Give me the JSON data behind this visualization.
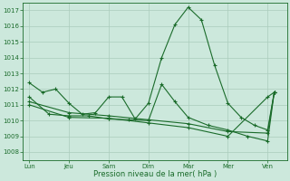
{
  "background_color": "#cce8dc",
  "grid_color": "#aaccbc",
  "line_color": "#1a6b2a",
  "title": "Pression niveau de la mer( hPa )",
  "ylim": [
    1007.5,
    1017.5
  ],
  "yticks": [
    1008,
    1009,
    1010,
    1011,
    1012,
    1013,
    1014,
    1015,
    1016,
    1017
  ],
  "x_labels": [
    "Lun",
    "Jeu",
    "Sam",
    "Dim",
    "Mar",
    "Mer",
    "Ven"
  ],
  "x_positions": [
    0,
    3,
    6,
    9,
    12,
    15,
    18
  ],
  "xlim": [
    -0.5,
    19.5
  ],
  "series1_x": [
    0,
    1,
    2,
    3,
    4,
    5,
    6,
    7,
    8,
    9,
    10,
    11,
    12,
    13,
    14,
    15,
    16,
    17,
    18,
    18.5
  ],
  "series1_y": [
    1012.4,
    1011.8,
    1012.0,
    1011.1,
    1010.4,
    1010.5,
    1011.5,
    1011.5,
    1010.1,
    1011.1,
    1014.0,
    1016.1,
    1017.2,
    1016.4,
    1013.5,
    1011.1,
    1010.2,
    1009.7,
    1009.4,
    1011.8
  ],
  "series2_x": [
    0,
    1.5,
    3,
    4.5,
    6,
    7.5,
    9,
    10,
    11,
    12,
    13.5,
    15,
    16.5,
    18,
    18.5
  ],
  "series2_y": [
    1011.5,
    1010.4,
    1010.3,
    1010.3,
    1010.1,
    1010.05,
    1010.0,
    1012.3,
    1011.2,
    1010.2,
    1009.7,
    1009.4,
    1009.0,
    1008.7,
    1011.8
  ],
  "series3_x": [
    0,
    3,
    6,
    9,
    12,
    15,
    18,
    18.5
  ],
  "series3_y": [
    1011.2,
    1010.5,
    1010.3,
    1010.05,
    1009.8,
    1009.3,
    1009.2,
    1011.8
  ],
  "series4_x": [
    0,
    3,
    6,
    9,
    12,
    15,
    18,
    18.5
  ],
  "series4_y": [
    1011.0,
    1010.2,
    1010.15,
    1009.85,
    1009.55,
    1009.0,
    1011.5,
    1011.8
  ]
}
